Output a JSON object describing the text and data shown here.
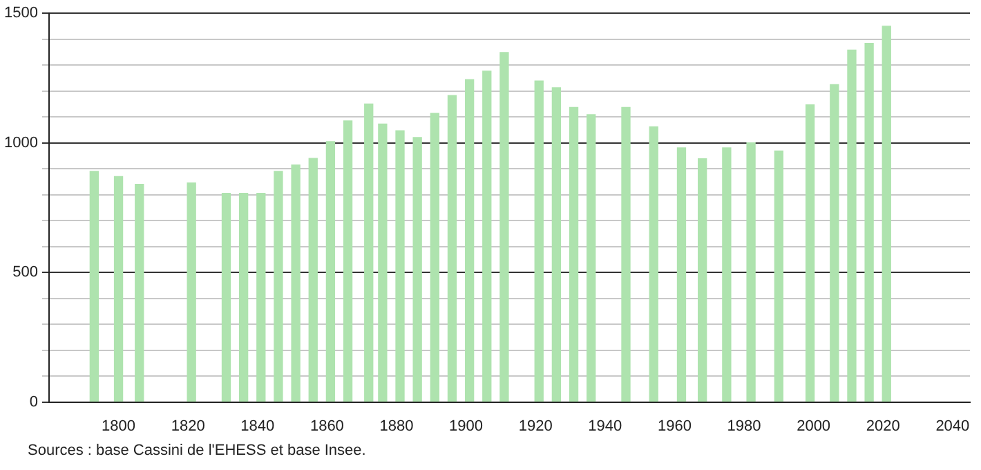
{
  "chart_data": {
    "type": "bar",
    "x": [
      1793,
      1800,
      1806,
      1821,
      1831,
      1836,
      1841,
      1846,
      1851,
      1856,
      1861,
      1866,
      1872,
      1876,
      1881,
      1886,
      1891,
      1896,
      1901,
      1906,
      1911,
      1921,
      1926,
      1931,
      1936,
      1946,
      1954,
      1962,
      1968,
      1975,
      1982,
      1990,
      1999,
      2006,
      2011,
      2016,
      2021
    ],
    "values": [
      890,
      870,
      840,
      845,
      805,
      805,
      805,
      890,
      915,
      940,
      1005,
      1085,
      1150,
      1073,
      1047,
      1021,
      1114,
      1183,
      1244,
      1277,
      1349,
      1239,
      1213,
      1137,
      1109,
      1137,
      1062,
      981,
      939,
      981,
      1000,
      969,
      1147,
      1225,
      1358,
      1384,
      1450
    ],
    "color": "#aee3ae",
    "xlim": [
      1780,
      2045
    ],
    "xticks": [
      1800,
      1820,
      1840,
      1860,
      1880,
      1900,
      1920,
      1940,
      1960,
      1980,
      2000,
      2020,
      2040
    ],
    "ylim": [
      0,
      1500
    ],
    "yticks": [
      0,
      {
        "value": 100,
        "label": null
      },
      {
        "value": 200,
        "label": null
      },
      {
        "value": 300,
        "label": null
      },
      {
        "value": 400,
        "label": null
      },
      500,
      {
        "value": 600,
        "label": null
      },
      {
        "value": 700,
        "label": null
      },
      {
        "value": 800,
        "label": null
      },
      {
        "value": 900,
        "label": null
      },
      1000,
      {
        "value": 1100,
        "label": null
      },
      {
        "value": 1200,
        "label": null
      },
      {
        "value": 1300,
        "label": null
      },
      {
        "value": 1400,
        "label": null
      },
      1500
    ],
    "grid": "y",
    "legend": false,
    "annotations": [
      "Sources : base Cassini de l'EHESS et base Insee."
    ]
  }
}
